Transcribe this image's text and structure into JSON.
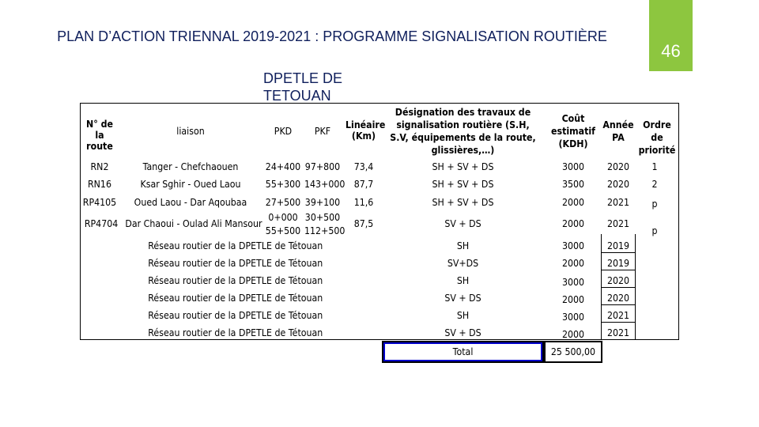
{
  "title": "PLAN D’ACTION TRIENNAL 2019-2021 : PROGRAMME SIGNALISATION ROUTIÈRE",
  "subtitle": "DPETLE DE TETOUAN",
  "page_number": "46",
  "colors": {
    "accent_green": "#8dc63f",
    "title_navy": "#0f1f5c",
    "total_border": "#0000cc"
  },
  "table": {
    "headers": {
      "route": "N° de la route",
      "liaison": "liaison",
      "pkd": "PKD",
      "pkf": "PKF",
      "lineaire": "Linéaire (Km)",
      "designation": "Désignation des travaux de signalisation routière (S.H, S.V, équipements de la route, glissières,…)",
      "cout": "Coût estimatif (KDH)",
      "annee": "Année PA",
      "ordre": "Ordre de priorité"
    },
    "rows": [
      {
        "route": "RN2",
        "liaison": "Tanger - Chefchaouen",
        "pkd": "24+400",
        "pkf": "97+800",
        "lineaire": "73,4",
        "designation": "SH + SV + DS",
        "cout": "3000",
        "annee": "2020",
        "ordre": "1"
      },
      {
        "route": "RN16",
        "liaison": "Ksar Sghir - Oued Laou",
        "pkd": "55+300",
        "pkf": "143+000",
        "lineaire": "87,7",
        "designation": "SH + SV + DS",
        "cout": "3500",
        "annee": "2020",
        "ordre": "2"
      },
      {
        "route": "RP4105",
        "liaison": "Oued Laou - Dar Aqoubaa",
        "pkd": "27+500",
        "pkf": "39+100",
        "lineaire": "11,6",
        "designation": "SH + SV + DS",
        "cout": "2000",
        "annee": "2021",
        "ordre": "p"
      },
      {
        "route": "RP4704",
        "liaison": "Dar Chaoui - Oulad Ali Mansour",
        "pkd": "0+000",
        "pkd2": "55+500",
        "pkf": "30+500",
        "pkf2": "112+500",
        "lineaire": "87,5",
        "designation": "SV + DS",
        "cout": "2000",
        "annee": "2021",
        "ordre": "p"
      }
    ],
    "reseau_rows": [
      {
        "liaison": "Réseau routier de la DPETLE de Tétouan",
        "designation": "SH",
        "cout": "3000",
        "annee": "2019"
      },
      {
        "liaison": "Réseau routier de la DPETLE de Tétouan",
        "designation": "SV+DS",
        "cout": "2000",
        "annee": "2019"
      },
      {
        "liaison": "Réseau routier de la DPETLE de Tétouan",
        "designation": "SH",
        "cout": "3000",
        "annee": "2020"
      },
      {
        "liaison": "Réseau routier de la DPETLE de Tétouan",
        "designation": "SV + DS",
        "cout": "2000",
        "annee": "2020"
      },
      {
        "liaison": "Réseau routier de la DPETLE de Tétouan",
        "designation": "SH",
        "cout": "3000",
        "annee": "2021"
      },
      {
        "liaison": "Réseau routier de la DPETLE de Tétouan",
        "designation": "SV + DS",
        "cout": "2000",
        "annee": "2021"
      }
    ],
    "total": {
      "label": "Total",
      "value": "25 500,00"
    }
  }
}
